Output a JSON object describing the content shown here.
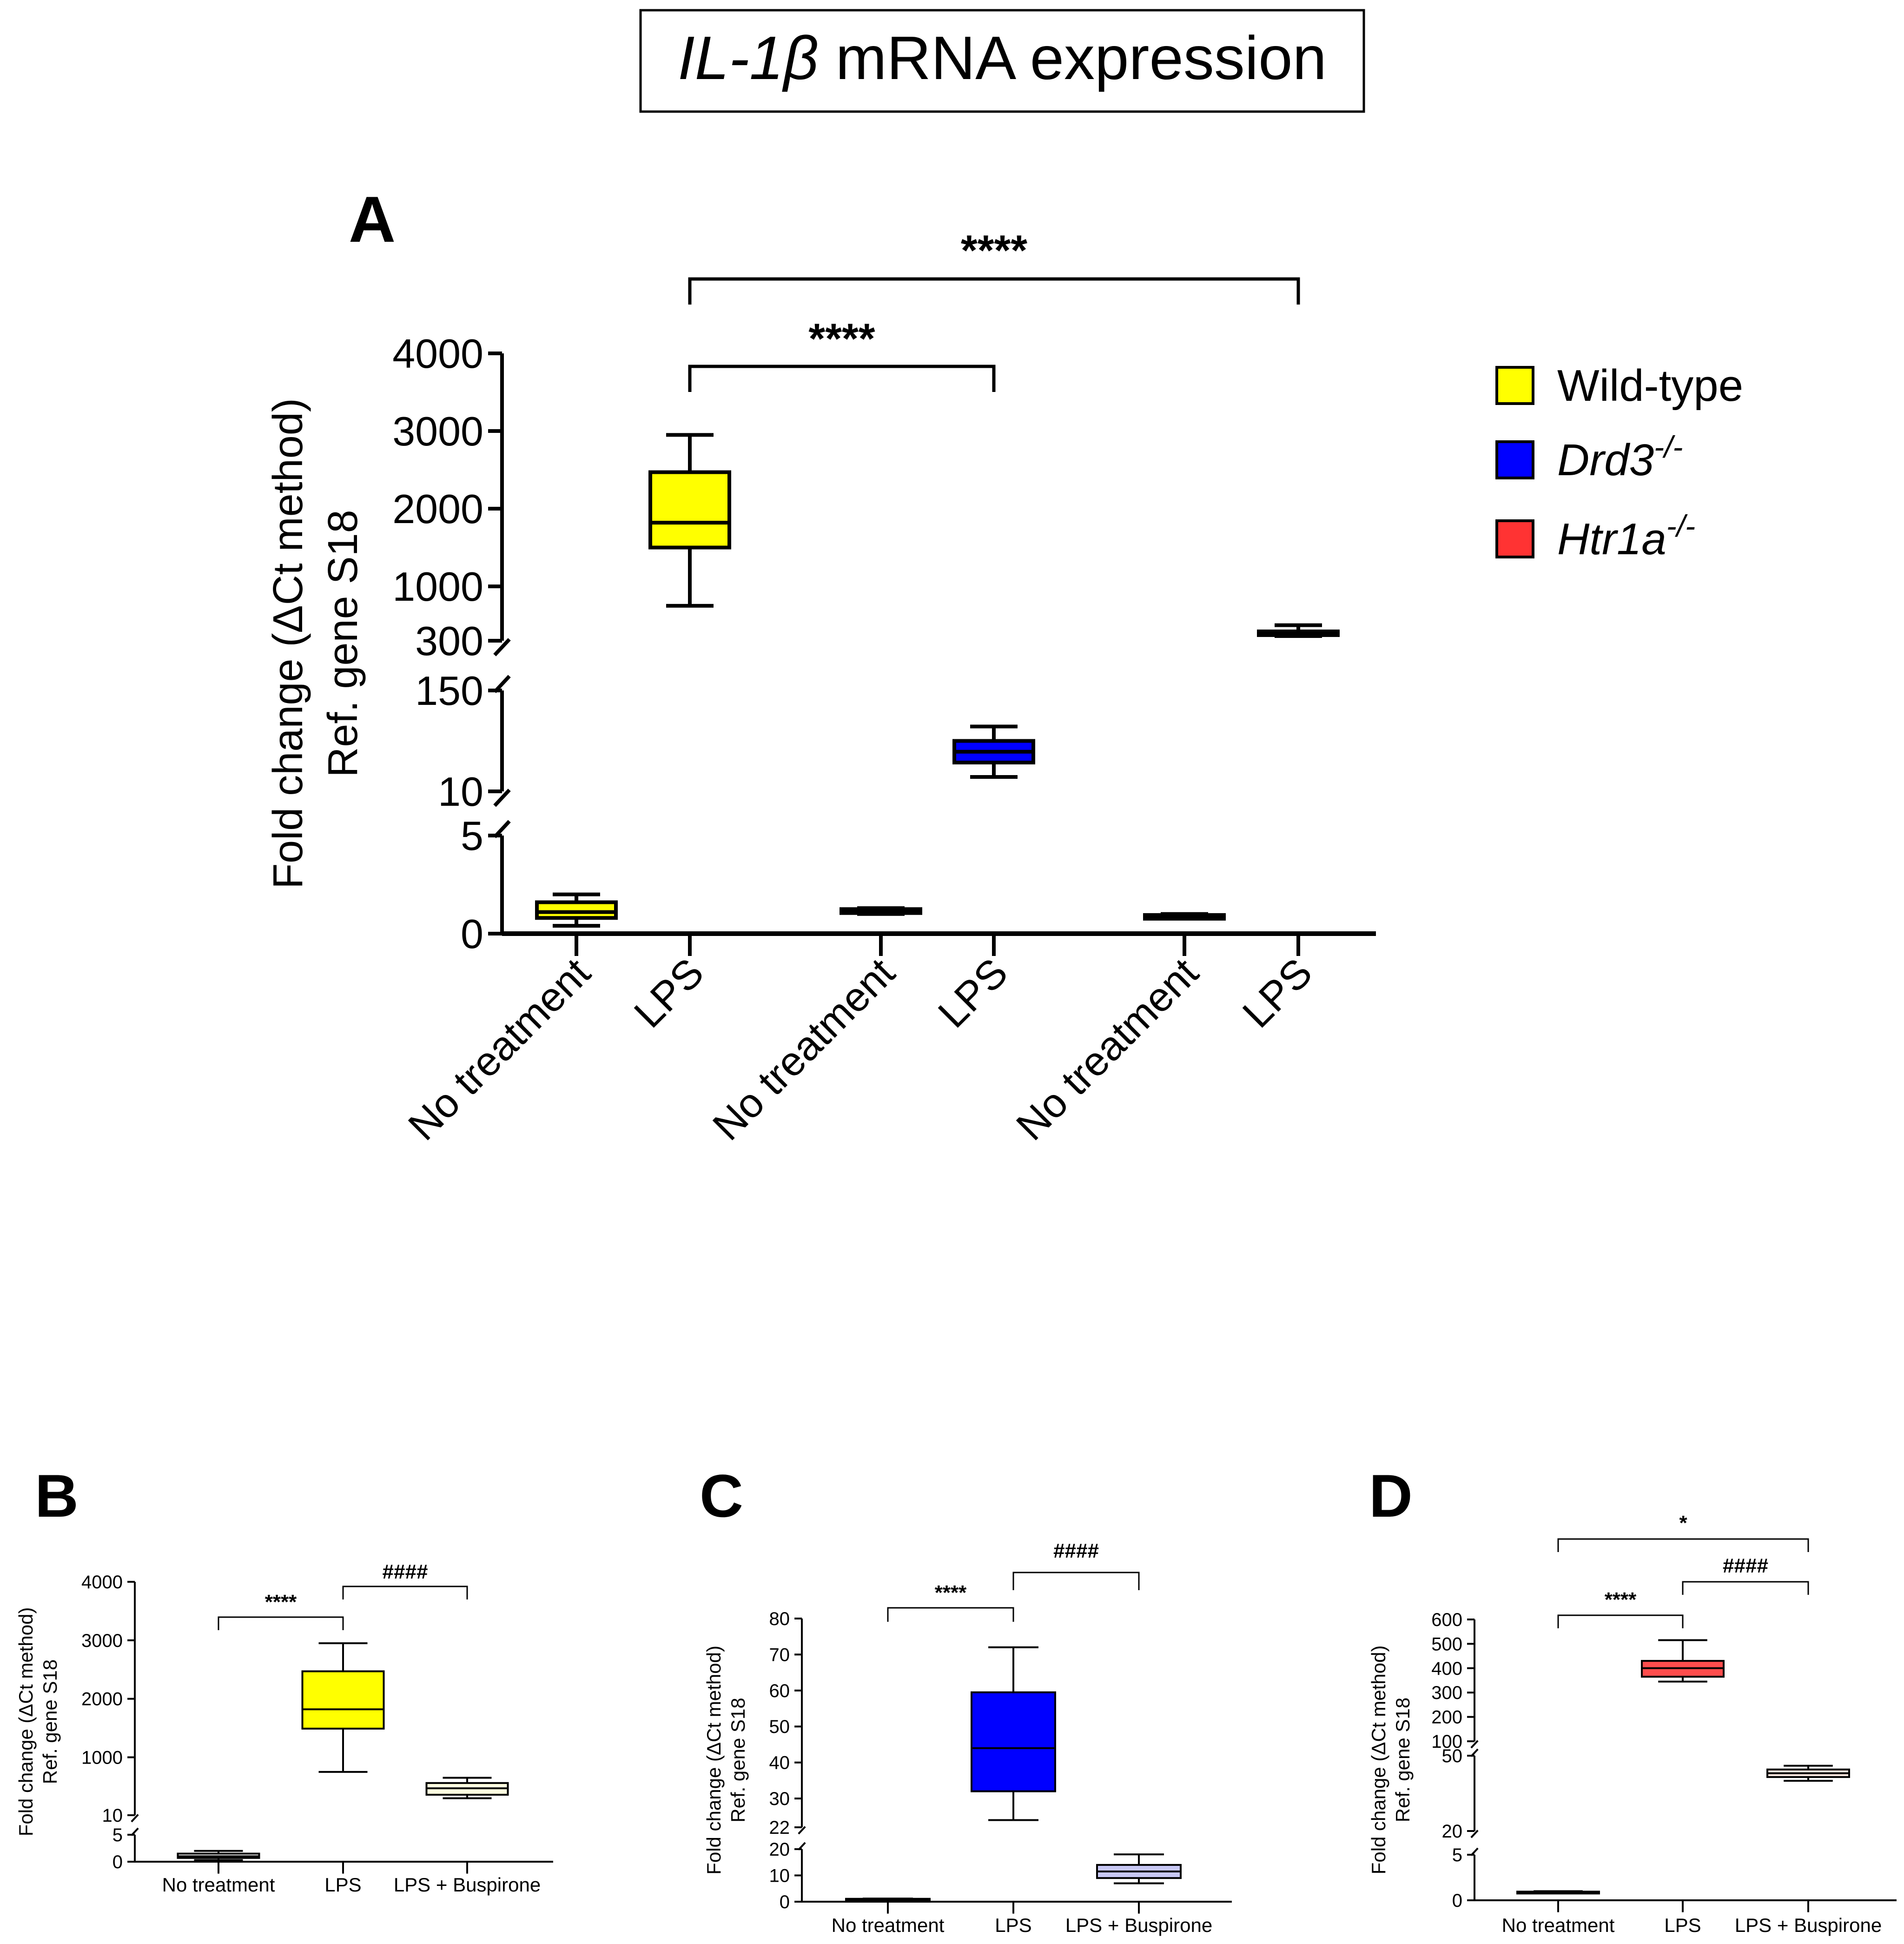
{
  "figure": {
    "title_gene": "IL-1β",
    "title_rest": " mRNA expression"
  },
  "legend": {
    "items": [
      {
        "label": "Wild-type",
        "italic": false,
        "superscript": "",
        "color": "#ffff00"
      },
      {
        "label": "Drd3",
        "italic": true,
        "superscript": "-/-",
        "color": "#0000ff"
      },
      {
        "label": "Htr1a",
        "italic": true,
        "superscript": "-/-",
        "color": "#ff3333"
      }
    ]
  },
  "chart_data": [
    {
      "panel": "A",
      "type": "box",
      "ylabel_line1": "Fold change (ΔCt method)",
      "ylabel_line2": "Ref. gene S18",
      "segments": [
        {
          "range": [
            0,
            5
          ],
          "ticks": [
            0,
            5
          ]
        },
        {
          "range": [
            10,
            150
          ],
          "ticks": [
            10,
            150
          ]
        },
        {
          "range": [
            300,
            4000
          ],
          "ticks": [
            300,
            1000,
            2000,
            3000,
            4000
          ]
        }
      ],
      "boxes": [
        {
          "category": "No treatment",
          "group": "Wild-type",
          "color": "#ffff00",
          "whisker_low": 0.4,
          "q1": 0.8,
          "median": 1.1,
          "q3": 1.6,
          "whisker_high": 2.0
        },
        {
          "category": "LPS",
          "group": "Wild-type",
          "color": "#ffff00",
          "whisker_low": 750,
          "q1": 1500,
          "median": 1820,
          "q3": 2470,
          "whisker_high": 2950
        },
        {
          "category": "No treatment",
          "group": "Drd3-/-",
          "color": "#0000ff",
          "whisker_low": 1.0,
          "q1": 1.05,
          "median": 1.15,
          "q3": 1.25,
          "whisker_high": 1.3
        },
        {
          "category": "LPS",
          "group": "Drd3-/-",
          "color": "#0000ff",
          "whisker_low": 30,
          "q1": 50,
          "median": 65,
          "q3": 80,
          "whisker_high": 100
        },
        {
          "category": "No treatment",
          "group": "Htr1a-/-",
          "color": "#ff3333",
          "whisker_low": 0.8,
          "q1": 0.85,
          "median": 0.9,
          "q3": 0.95,
          "whisker_high": 1.0
        },
        {
          "category": "LPS",
          "group": "Htr1a-/-",
          "color": "#ff3333",
          "whisker_low": 360,
          "q1": 380,
          "median": 400,
          "q3": 420,
          "whisker_high": 500
        }
      ],
      "significance": [
        {
          "from": 1,
          "to": 5,
          "label": "****"
        },
        {
          "from": 1,
          "to": 3,
          "label": "****"
        }
      ]
    },
    {
      "panel": "B",
      "type": "box",
      "ylabel_line1": "Fold change (ΔCt method)",
      "ylabel_line2": "Ref. gene S18",
      "segments": [
        {
          "range": [
            0,
            5
          ],
          "ticks": [
            0,
            5
          ]
        },
        {
          "range": [
            10,
            4000
          ],
          "ticks": [
            10,
            1000,
            2000,
            3000,
            4000
          ]
        }
      ],
      "categories": [
        "No treatment",
        "LPS",
        "LPS + Buspirone"
      ],
      "boxes": [
        {
          "category": "No treatment",
          "color": "#ffffff",
          "whisker_low": 0.3,
          "q1": 0.7,
          "median": 1.0,
          "q3": 1.5,
          "whisker_high": 2.0
        },
        {
          "category": "LPS",
          "color": "#ffff00",
          "whisker_low": 750,
          "q1": 1490,
          "median": 1820,
          "q3": 2470,
          "whisker_high": 2950
        },
        {
          "category": "LPS + Buspirone",
          "color": "#ffffe0",
          "whisker_low": 300,
          "q1": 360,
          "median": 470,
          "q3": 560,
          "whisker_high": 650
        }
      ],
      "significance": [
        {
          "from": 0,
          "to": 1,
          "label": "****"
        },
        {
          "from": 1,
          "to": 2,
          "label": "####"
        }
      ]
    },
    {
      "panel": "C",
      "type": "box",
      "ylabel_line1": "Fold change (ΔCt method)",
      "ylabel_line2": "Ref. gene S18",
      "segments": [
        {
          "range": [
            0,
            20
          ],
          "ticks": [
            0,
            10,
            20
          ]
        },
        {
          "range": [
            22,
            80
          ],
          "ticks": [
            22,
            30,
            40,
            50,
            60,
            70,
            80
          ]
        }
      ],
      "categories": [
        "No treatment",
        "LPS",
        "LPS + Buspirone"
      ],
      "boxes": [
        {
          "category": "No treatment",
          "color": "#ffffff",
          "whisker_low": 0.8,
          "q1": 0.9,
          "median": 1.0,
          "q3": 1.1,
          "whisker_high": 1.2
        },
        {
          "category": "LPS",
          "color": "#0000ff",
          "whisker_low": 24,
          "q1": 32,
          "median": 44,
          "q3": 59.5,
          "whisker_high": 72
        },
        {
          "category": "LPS + Buspirone",
          "color": "#c8c8f5",
          "whisker_low": 7,
          "q1": 9,
          "median": 11.5,
          "q3": 14,
          "whisker_high": 18
        }
      ],
      "significance": [
        {
          "from": 0,
          "to": 1,
          "label": "****"
        },
        {
          "from": 1,
          "to": 2,
          "label": "####"
        }
      ]
    },
    {
      "panel": "D",
      "type": "box",
      "ylabel_line1": "Fold change (ΔCt method)",
      "ylabel_line2": "Ref. gene S18",
      "segments": [
        {
          "range": [
            0,
            5
          ],
          "ticks": [
            0,
            5
          ]
        },
        {
          "range": [
            20,
            50
          ],
          "ticks": [
            20,
            50
          ]
        },
        {
          "range": [
            100,
            600
          ],
          "ticks": [
            100,
            200,
            300,
            400,
            500,
            600
          ]
        }
      ],
      "categories": [
        "No treatment",
        "LPS",
        "LPS + Buspirone"
      ],
      "boxes": [
        {
          "category": "No treatment",
          "color": "#ffffff",
          "whisker_low": 0.8,
          "q1": 0.85,
          "median": 0.9,
          "q3": 0.95,
          "whisker_high": 1.0
        },
        {
          "category": "LPS",
          "color": "#ff4d4d",
          "whisker_low": 345,
          "q1": 365,
          "median": 400,
          "q3": 430,
          "whisker_high": 515
        },
        {
          "category": "LPS + Buspirone",
          "color": "#fde8e0",
          "whisker_low": 40,
          "q1": 41.5,
          "median": 43,
          "q3": 44.5,
          "whisker_high": 46
        }
      ],
      "significance": [
        {
          "from": 0,
          "to": 2,
          "label": "*"
        },
        {
          "from": 1,
          "to": 2,
          "label": "####"
        },
        {
          "from": 0,
          "to": 1,
          "label": "****"
        }
      ]
    }
  ]
}
